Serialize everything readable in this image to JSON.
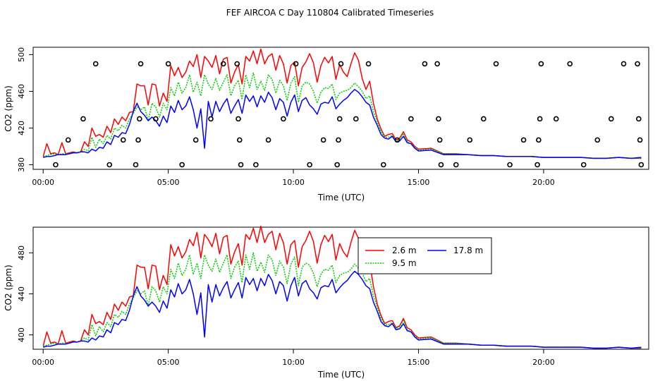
{
  "chart_data": {
    "title": "FEF AIRCOA C  Day 110804  Calibrated Timeseries",
    "colors": {
      "s26": "#ff0000",
      "s95": "#00cd00",
      "s178": "#0000ff",
      "marker": "#000000"
    },
    "panels": [
      {
        "type": "line+scatter",
        "xlabel": "Time (UTC)",
        "ylabel": "CO2 (ppm)",
        "xlim": [
          -0.4,
          24.2
        ],
        "ylim": [
          375,
          508
        ],
        "x_ticks": [
          0,
          5,
          10,
          15,
          20
        ],
        "x_tick_labels": [
          "00:00",
          "05:00",
          "10:00",
          "15:00",
          "20:00"
        ],
        "y_ticks": [
          380,
          420,
          460,
          500
        ],
        "y_tick_labels": [
          "380",
          "420",
          "460",
          "500"
        ],
        "marker_levels": [
          380,
          407,
          430,
          490
        ],
        "markers": [
          {
            "x": 0.5,
            "y": 380
          },
          {
            "x": 1.0,
            "y": 407
          },
          {
            "x": 1.6,
            "y": 430
          },
          {
            "x": 2.1,
            "y": 490
          },
          {
            "x": 2.65,
            "y": 380
          },
          {
            "x": 3.2,
            "y": 407
          },
          {
            "x": 3.7,
            "y": 380
          },
          {
            "x": 3.8,
            "y": 407
          },
          {
            "x": 3.85,
            "y": 430
          },
          {
            "x": 3.9,
            "y": 490
          },
          {
            "x": 4.5,
            "y": 430
          },
          {
            "x": 5.0,
            "y": 490
          },
          {
            "x": 5.55,
            "y": 380
          },
          {
            "x": 6.1,
            "y": 407
          },
          {
            "x": 6.7,
            "y": 430
          },
          {
            "x": 7.2,
            "y": 490
          },
          {
            "x": 7.75,
            "y": 490
          },
          {
            "x": 7.8,
            "y": 430
          },
          {
            "x": 7.85,
            "y": 407
          },
          {
            "x": 7.9,
            "y": 380
          },
          {
            "x": 8.5,
            "y": 380
          },
          {
            "x": 9.0,
            "y": 407
          },
          {
            "x": 9.6,
            "y": 430
          },
          {
            "x": 10.1,
            "y": 490
          },
          {
            "x": 10.65,
            "y": 380
          },
          {
            "x": 11.2,
            "y": 407
          },
          {
            "x": 11.75,
            "y": 380
          },
          {
            "x": 11.8,
            "y": 407
          },
          {
            "x": 11.85,
            "y": 430
          },
          {
            "x": 11.9,
            "y": 490
          },
          {
            "x": 12.5,
            "y": 430
          },
          {
            "x": 13.0,
            "y": 490
          },
          {
            "x": 13.6,
            "y": 380
          },
          {
            "x": 14.15,
            "y": 407
          },
          {
            "x": 14.7,
            "y": 430
          },
          {
            "x": 15.25,
            "y": 490
          },
          {
            "x": 15.75,
            "y": 490
          },
          {
            "x": 15.8,
            "y": 430
          },
          {
            "x": 15.85,
            "y": 407
          },
          {
            "x": 15.9,
            "y": 380
          },
          {
            "x": 16.5,
            "y": 380
          },
          {
            "x": 17.05,
            "y": 407
          },
          {
            "x": 17.6,
            "y": 430
          },
          {
            "x": 18.1,
            "y": 490
          },
          {
            "x": 18.65,
            "y": 380
          },
          {
            "x": 19.2,
            "y": 407
          },
          {
            "x": 19.75,
            "y": 380
          },
          {
            "x": 19.8,
            "y": 407
          },
          {
            "x": 19.85,
            "y": 430
          },
          {
            "x": 19.9,
            "y": 490
          },
          {
            "x": 20.5,
            "y": 430
          },
          {
            "x": 21.05,
            "y": 490
          },
          {
            "x": 21.6,
            "y": 380
          },
          {
            "x": 22.15,
            "y": 407
          },
          {
            "x": 22.7,
            "y": 430
          },
          {
            "x": 23.2,
            "y": 490
          },
          {
            "x": 23.75,
            "y": 490
          },
          {
            "x": 23.8,
            "y": 430
          },
          {
            "x": 23.85,
            "y": 407
          },
          {
            "x": 23.9,
            "y": 380
          }
        ],
        "legend": null
      },
      {
        "type": "line",
        "xlabel": "Time (UTC)",
        "ylabel": "CO2 (ppm)",
        "xlim": [
          -0.4,
          24.2
        ],
        "ylim": [
          386,
          505
        ],
        "x_ticks": [
          0,
          5,
          10,
          15,
          20
        ],
        "x_tick_labels": [
          "00:00",
          "05:00",
          "10:00",
          "15:00",
          "20:00"
        ],
        "y_ticks": [
          400,
          440,
          480
        ],
        "y_tick_labels": [
          "400",
          "440",
          "480"
        ],
        "markers": [],
        "legend": {
          "position": "top-right",
          "entries": [
            {
              "label": "2.6 m",
              "series": "s26"
            },
            {
              "label": "17.8 m",
              "series": "s178"
            },
            {
              "label": "9.5 m",
              "series": "s95"
            }
          ]
        }
      }
    ],
    "series": [
      {
        "key": "s26",
        "name": "2.6 m",
        "x": [
          0,
          0.15,
          0.3,
          0.45,
          0.6,
          0.75,
          0.9,
          1.05,
          1.2,
          1.35,
          1.5,
          1.65,
          1.8,
          1.95,
          2.1,
          2.25,
          2.4,
          2.55,
          2.7,
          2.85,
          3.0,
          3.15,
          3.3,
          3.45,
          3.6,
          3.75,
          3.9,
          4.05,
          4.2,
          4.35,
          4.5,
          4.65,
          4.8,
          4.95,
          5.1,
          5.25,
          5.4,
          5.55,
          5.7,
          5.85,
          6.0,
          6.15,
          6.3,
          6.45,
          6.6,
          6.75,
          6.9,
          7.05,
          7.2,
          7.35,
          7.5,
          7.65,
          7.8,
          7.95,
          8.1,
          8.25,
          8.4,
          8.55,
          8.7,
          8.85,
          9.0,
          9.15,
          9.3,
          9.45,
          9.6,
          9.75,
          9.9,
          10.05,
          10.2,
          10.35,
          10.5,
          10.65,
          10.8,
          10.95,
          11.1,
          11.25,
          11.4,
          11.55,
          11.7,
          11.85,
          12.0,
          12.15,
          12.3,
          12.45,
          12.6,
          12.75,
          12.9,
          13.05,
          13.2,
          13.35,
          13.5,
          13.65,
          13.8,
          13.95,
          14.1,
          14.25,
          14.4,
          14.55,
          14.7,
          14.85,
          15.0,
          15.5,
          16.0,
          16.5,
          17.0,
          17.5,
          18.0,
          18.5,
          19.0,
          19.5,
          20.0,
          20.5,
          21.0,
          21.5,
          22.0,
          22.5,
          23.0,
          23.5,
          23.9
        ],
        "y": [
          389,
          403,
          392,
          393,
          391,
          404,
          392,
          393,
          394,
          393,
          394,
          405,
          400,
          420,
          411,
          413,
          410,
          422,
          415,
          430,
          424,
          432,
          428,
          437,
          438,
          468,
          466,
          466,
          445,
          468,
          467,
          444,
          458,
          449,
          488,
          477,
          486,
          475,
          481,
          493,
          487,
          500,
          475,
          498,
          493,
          486,
          499,
          479,
          495,
          497,
          469,
          481,
          489,
          468,
          498,
          493,
          504,
          490,
          506,
          490,
          498,
          501,
          483,
          499,
          490,
          469,
          488,
          492,
          466,
          486,
          492,
          501,
          491,
          470,
          488,
          497,
          491,
          498,
          473,
          489,
          481,
          476,
          490,
          502,
          494,
          474,
          462,
          471,
          447,
          430,
          419,
          411,
          413,
          414,
          407,
          409,
          416,
          407,
          405,
          400,
          397,
          398,
          392,
          392,
          391,
          390,
          390,
          389,
          389,
          389,
          388,
          388,
          388,
          388,
          387,
          387,
          388,
          387,
          387
        ]
      },
      {
        "key": "s95",
        "name": "9.5 m",
        "x": [
          0,
          0.15,
          0.3,
          0.45,
          0.6,
          0.75,
          0.9,
          1.05,
          1.2,
          1.35,
          1.5,
          1.65,
          1.8,
          1.95,
          2.1,
          2.25,
          2.4,
          2.55,
          2.7,
          2.85,
          3.0,
          3.15,
          3.3,
          3.45,
          3.6,
          3.75,
          3.9,
          4.05,
          4.2,
          4.35,
          4.5,
          4.65,
          4.8,
          4.95,
          5.1,
          5.25,
          5.4,
          5.55,
          5.7,
          5.85,
          6.0,
          6.15,
          6.3,
          6.45,
          6.6,
          6.75,
          6.9,
          7.05,
          7.2,
          7.35,
          7.5,
          7.65,
          7.8,
          7.95,
          8.1,
          8.25,
          8.4,
          8.55,
          8.7,
          8.85,
          9.0,
          9.15,
          9.3,
          9.45,
          9.6,
          9.75,
          9.9,
          10.05,
          10.2,
          10.35,
          10.5,
          10.65,
          10.8,
          10.95,
          11.1,
          11.25,
          11.4,
          11.55,
          11.7,
          11.85,
          12.0,
          12.15,
          12.3,
          12.45,
          12.6,
          12.75,
          12.9,
          13.05,
          13.2,
          13.35,
          13.5,
          13.65,
          13.8,
          13.95,
          14.1,
          14.25,
          14.4,
          14.55,
          14.7,
          14.85,
          15.0,
          15.5,
          16.0,
          16.5,
          17.0,
          17.5,
          18.0,
          18.5,
          19.0,
          19.5,
          20.0,
          20.5,
          21.0,
          21.5,
          22.0,
          22.5,
          23.0,
          23.5,
          23.9
        ],
        "y": [
          389,
          390,
          391,
          392,
          391,
          392,
          392,
          392,
          393,
          393,
          394,
          397,
          395,
          410,
          399,
          408,
          403,
          412,
          408,
          420,
          417,
          423,
          420,
          430,
          436,
          443,
          440,
          443,
          428,
          447,
          443,
          432,
          447,
          440,
          464,
          455,
          470,
          458,
          464,
          478,
          459,
          470,
          455,
          478,
          468,
          462,
          474,
          461,
          470,
          478,
          455,
          466,
          472,
          451,
          478,
          464,
          480,
          462,
          471,
          461,
          478,
          473,
          458,
          472,
          466,
          450,
          469,
          476,
          448,
          466,
          470,
          468,
          460,
          447,
          459,
          464,
          463,
          468,
          451,
          458,
          460,
          461,
          464,
          469,
          465,
          460,
          452,
          455,
          438,
          427,
          416,
          410,
          410,
          412,
          406,
          408,
          414,
          405,
          403,
          399,
          396,
          397,
          392,
          392,
          391,
          390,
          390,
          389,
          389,
          389,
          388,
          388,
          388,
          388,
          387,
          387,
          388,
          387,
          387
        ]
      },
      {
        "key": "s178",
        "name": "17.8 m",
        "x": [
          0,
          0.15,
          0.3,
          0.45,
          0.6,
          0.75,
          0.9,
          1.05,
          1.2,
          1.35,
          1.5,
          1.65,
          1.8,
          1.95,
          2.1,
          2.25,
          2.4,
          2.55,
          2.7,
          2.85,
          3.0,
          3.15,
          3.3,
          3.45,
          3.6,
          3.75,
          3.9,
          4.05,
          4.2,
          4.35,
          4.5,
          4.65,
          4.8,
          4.95,
          5.1,
          5.25,
          5.4,
          5.55,
          5.7,
          5.85,
          6.0,
          6.15,
          6.3,
          6.45,
          6.6,
          6.75,
          6.9,
          7.05,
          7.2,
          7.35,
          7.5,
          7.65,
          7.8,
          7.95,
          8.1,
          8.25,
          8.4,
          8.55,
          8.7,
          8.85,
          9.0,
          9.15,
          9.3,
          9.45,
          9.6,
          9.75,
          9.9,
          10.05,
          10.2,
          10.35,
          10.5,
          10.65,
          10.8,
          10.95,
          11.1,
          11.25,
          11.4,
          11.55,
          11.7,
          11.85,
          12.0,
          12.15,
          12.3,
          12.45,
          12.6,
          12.75,
          12.9,
          13.05,
          13.2,
          13.35,
          13.5,
          13.65,
          13.8,
          13.95,
          14.1,
          14.25,
          14.4,
          14.55,
          14.7,
          14.85,
          15.0,
          15.5,
          16.0,
          16.5,
          17.0,
          17.5,
          18.0,
          18.5,
          19.0,
          19.5,
          20.0,
          20.5,
          21.0,
          21.5,
          22.0,
          22.5,
          23.0,
          23.5,
          23.9
        ],
        "y": [
          388,
          389,
          389,
          390,
          391,
          391,
          391,
          392,
          393,
          393,
          394,
          394,
          393,
          397,
          395,
          399,
          398,
          405,
          402,
          412,
          410,
          415,
          414,
          424,
          438,
          447,
          438,
          434,
          428,
          432,
          428,
          422,
          433,
          426,
          444,
          437,
          450,
          440,
          444,
          454,
          440,
          420,
          441,
          398,
          449,
          432,
          449,
          438,
          446,
          452,
          436,
          444,
          451,
          436,
          456,
          449,
          455,
          443,
          455,
          448,
          459,
          453,
          440,
          452,
          448,
          433,
          448,
          456,
          438,
          450,
          453,
          445,
          441,
          435,
          446,
          448,
          447,
          454,
          441,
          446,
          450,
          453,
          458,
          462,
          459,
          454,
          448,
          445,
          432,
          423,
          413,
          409,
          408,
          411,
          405,
          406,
          411,
          404,
          403,
          398,
          395,
          396,
          391,
          391,
          391,
          390,
          390,
          389,
          389,
          389,
          388,
          388,
          388,
          388,
          387,
          387,
          388,
          387,
          388
        ]
      }
    ]
  }
}
